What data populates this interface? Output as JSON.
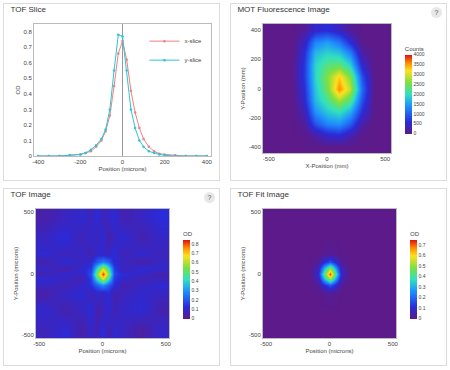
{
  "chart_data": [
    {
      "type": "line",
      "title": "TOF Slice",
      "x_label": "Position (microns)",
      "y_label": "OD",
      "x": [
        -400,
        -350,
        -300,
        -250,
        -200,
        -175,
        -150,
        -125,
        -100,
        -80,
        -60,
        -40,
        -20,
        0,
        20,
        40,
        60,
        80,
        100,
        125,
        150,
        175,
        200,
        250,
        300,
        350,
        400
      ],
      "series": [
        {
          "name": "x-slice",
          "color": "#f08080",
          "marker": "circle",
          "values": [
            0,
            0,
            0,
            0.005,
            0.01,
            0.02,
            0.03,
            0.06,
            0.1,
            0.16,
            0.26,
            0.45,
            0.66,
            0.74,
            0.62,
            0.42,
            0.28,
            0.18,
            0.11,
            0.06,
            0.03,
            0.015,
            0.01,
            0.005,
            0,
            0,
            0
          ]
        },
        {
          "name": "y-slice",
          "color": "#2ec4d6",
          "marker": "circle",
          "values": [
            0,
            0,
            0,
            0.005,
            0.01,
            0.02,
            0.04,
            0.07,
            0.11,
            0.17,
            0.3,
            0.55,
            0.78,
            0.77,
            0.55,
            0.3,
            0.18,
            0.1,
            0.06,
            0.03,
            0.02,
            0.01,
            0.005,
            0,
            0,
            0,
            0
          ]
        }
      ],
      "xlim": [
        -420,
        420
      ],
      "xticks": [
        -400,
        -200,
        0,
        200,
        400
      ],
      "ylim": [
        0,
        0.85
      ],
      "yticks": [
        0,
        0.1,
        0.2,
        0.3,
        0.4,
        0.5,
        0.6,
        0.7,
        0.8
      ],
      "legend": "upper right",
      "grid": false
    },
    {
      "type": "heatmap",
      "title": "MOT Fluorescence Image",
      "annotations": [
        "?"
      ],
      "x_label": "X-Position (mm)",
      "y_label": "Y-Position (mm)",
      "x": [
        -500,
        -400,
        -300,
        -200,
        -100,
        0,
        100,
        200,
        300,
        400,
        500
      ],
      "y": [
        -400,
        -320,
        -240,
        -160,
        -80,
        0,
        80,
        160,
        240,
        320,
        400
      ],
      "z": [
        [
          0,
          0,
          0,
          0,
          0,
          0,
          0,
          0,
          0,
          0,
          0
        ],
        [
          0,
          0,
          0,
          0,
          200,
          500,
          600,
          300,
          0,
          0,
          0
        ],
        [
          0,
          0,
          0,
          100,
          900,
          1300,
          1400,
          1000,
          200,
          0,
          0
        ],
        [
          0,
          0,
          0,
          300,
          1400,
          1800,
          2000,
          1600,
          600,
          0,
          0
        ],
        [
          0,
          0,
          0,
          500,
          1700,
          2200,
          2800,
          2300,
          900,
          0,
          0
        ],
        [
          0,
          0,
          0,
          600,
          1800,
          2500,
          3600,
          2900,
          1100,
          0,
          0
        ],
        [
          0,
          0,
          0,
          700,
          1900,
          2600,
          3300,
          2600,
          900,
          0,
          0
        ],
        [
          0,
          0,
          0,
          700,
          1900,
          2300,
          2400,
          1900,
          500,
          0,
          0
        ],
        [
          0,
          0,
          0,
          600,
          1700,
          1900,
          1800,
          1300,
          200,
          0,
          0
        ],
        [
          0,
          0,
          0,
          400,
          1300,
          1500,
          1200,
          600,
          0,
          0,
          0
        ],
        [
          0,
          0,
          0,
          100,
          500,
          600,
          400,
          100,
          0,
          0,
          0
        ]
      ],
      "xlim": [
        -550,
        550
      ],
      "xticks": [
        -500,
        0,
        500
      ],
      "ylim": [
        -440,
        440
      ],
      "yticks": [
        -400,
        -200,
        0,
        200,
        400
      ],
      "colorbar": {
        "title": "Counts",
        "range": [
          0,
          4000
        ],
        "ticks": [
          0,
          500,
          1000,
          1500,
          2000,
          2500,
          3000,
          3500,
          4000
        ]
      }
    },
    {
      "type": "heatmap",
      "title": "TOF Image",
      "annotations": [
        "?"
      ],
      "x_label": "Position (microns)",
      "y_label": "Y-Position (microns)",
      "x": [
        -450,
        -300,
        -160,
        -90,
        -45,
        0,
        45,
        90,
        160,
        300,
        450
      ],
      "y": [
        -450,
        -300,
        -160,
        -90,
        -45,
        0,
        45,
        90,
        160,
        300,
        450
      ],
      "z": [
        [
          0.08,
          0.12,
          0.05,
          0.1,
          0.07,
          0.13,
          0.06,
          0.11,
          0.09,
          0.04,
          0.1
        ],
        [
          0.11,
          0.06,
          0.09,
          0.13,
          0.05,
          0.08,
          0.12,
          0.07,
          0.1,
          0.12,
          0.06
        ],
        [
          0.05,
          0.1,
          0.12,
          0.07,
          0.11,
          0.09,
          0.13,
          0.06,
          0.08,
          0.11,
          0.09
        ],
        [
          0.09,
          0.07,
          0.1,
          0.14,
          0.22,
          0.29,
          0.21,
          0.13,
          0.06,
          0.09,
          0.12
        ],
        [
          0.12,
          0.09,
          0.06,
          0.16,
          0.42,
          0.63,
          0.43,
          0.15,
          0.1,
          0.07,
          0.08
        ],
        [
          0.07,
          0.11,
          0.09,
          0.19,
          0.56,
          0.82,
          0.57,
          0.18,
          0.12,
          0.1,
          0.06
        ],
        [
          0.1,
          0.05,
          0.12,
          0.15,
          0.41,
          0.62,
          0.44,
          0.16,
          0.07,
          0.12,
          0.11
        ],
        [
          0.06,
          0.12,
          0.08,
          0.12,
          0.21,
          0.28,
          0.23,
          0.11,
          0.1,
          0.05,
          0.09
        ],
        [
          0.11,
          0.08,
          0.1,
          0.06,
          0.12,
          0.1,
          0.09,
          0.13,
          0.07,
          0.11,
          0.08
        ],
        [
          0.09,
          0.13,
          0.07,
          0.11,
          0.08,
          0.12,
          0.05,
          0.09,
          0.12,
          0.06,
          0.1
        ],
        [
          0.05,
          0.09,
          0.11,
          0.08,
          0.13,
          0.07,
          0.1,
          0.12,
          0.06,
          0.09,
          0.13
        ]
      ],
      "xlim": [
        -525,
        525
      ],
      "xticks": [
        -500,
        0,
        500
      ],
      "ylim": [
        -525,
        525
      ],
      "yticks": [
        -500,
        0,
        500
      ],
      "colorbar": {
        "title": "OD",
        "range": [
          0,
          0.85
        ],
        "ticks": [
          0,
          0.1,
          0.2,
          0.3,
          0.4,
          0.5,
          0.6,
          0.7,
          0.8
        ]
      }
    },
    {
      "type": "heatmap",
      "title": "TOF Fit Image",
      "x_label": "Position (microns)",
      "y_label": "Y-Position (microns)",
      "x": [
        -450,
        -300,
        -160,
        -90,
        -45,
        0,
        45,
        90,
        160,
        300,
        450
      ],
      "y": [
        -450,
        -300,
        -160,
        -90,
        -45,
        0,
        45,
        90,
        160,
        300,
        450
      ],
      "z": [
        [
          0,
          0,
          0,
          0,
          0,
          0,
          0,
          0,
          0,
          0,
          0
        ],
        [
          0,
          0,
          0,
          0,
          0,
          0,
          0,
          0,
          0,
          0,
          0
        ],
        [
          0,
          0,
          0,
          0,
          0.01,
          0.02,
          0.01,
          0,
          0,
          0,
          0
        ],
        [
          0,
          0,
          0,
          0.02,
          0.11,
          0.18,
          0.11,
          0.02,
          0,
          0,
          0
        ],
        [
          0,
          0,
          0,
          0.06,
          0.3,
          0.5,
          0.3,
          0.06,
          0,
          0,
          0
        ],
        [
          0,
          0,
          0,
          0.09,
          0.43,
          0.72,
          0.43,
          0.09,
          0,
          0,
          0
        ],
        [
          0,
          0,
          0,
          0.06,
          0.3,
          0.5,
          0.3,
          0.06,
          0,
          0,
          0
        ],
        [
          0,
          0,
          0,
          0.02,
          0.11,
          0.18,
          0.11,
          0.02,
          0,
          0,
          0
        ],
        [
          0,
          0,
          0,
          0,
          0.01,
          0.02,
          0.01,
          0,
          0,
          0,
          0
        ],
        [
          0,
          0,
          0,
          0,
          0,
          0,
          0,
          0,
          0,
          0,
          0
        ],
        [
          0,
          0,
          0,
          0,
          0,
          0,
          0,
          0,
          0,
          0,
          0
        ]
      ],
      "xlim": [
        -525,
        525
      ],
      "xticks": [
        -500,
        0,
        500
      ],
      "ylim": [
        -525,
        525
      ],
      "yticks": [
        -500,
        0,
        500
      ],
      "colorbar": {
        "title": "OD",
        "range": [
          0,
          0.75
        ],
        "ticks": [
          0,
          0.1,
          0.2,
          0.3,
          0.4,
          0.5,
          0.6,
          0.7
        ]
      }
    }
  ]
}
